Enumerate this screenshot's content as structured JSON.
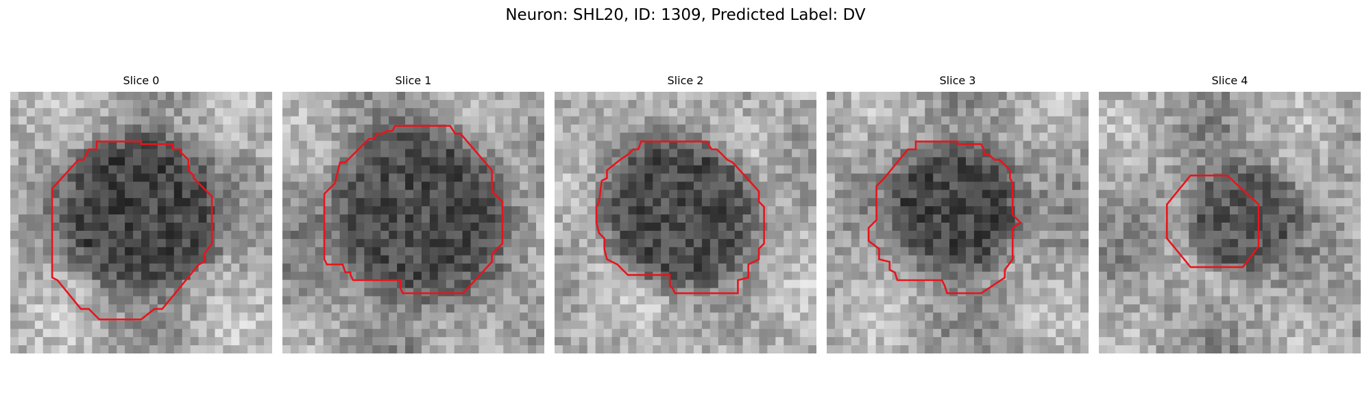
{
  "figure": {
    "title": "Neuron: SHL20, ID: 1309, Predicted Label: DV",
    "contour_color": "#e8141b",
    "image_colormap": "gray"
  },
  "panels": [
    {
      "title": "Slice 0",
      "seed": 11,
      "background_mean": 0.66,
      "dark_center": [
        0.5,
        0.46
      ],
      "dark_radius": 0.31,
      "dark_level": 0.27,
      "contour": [
        [
          0.33,
          0.19
        ],
        [
          0.5,
          0.19
        ],
        [
          0.5,
          0.2
        ],
        [
          0.62,
          0.2
        ],
        [
          0.62,
          0.22
        ],
        [
          0.65,
          0.22
        ],
        [
          0.65,
          0.23
        ],
        [
          0.68,
          0.26
        ],
        [
          0.68,
          0.3
        ],
        [
          0.7,
          0.32
        ],
        [
          0.7,
          0.33
        ],
        [
          0.77,
          0.4
        ],
        [
          0.77,
          0.58
        ],
        [
          0.74,
          0.62
        ],
        [
          0.74,
          0.65
        ],
        [
          0.72,
          0.66
        ],
        [
          0.58,
          0.83
        ],
        [
          0.55,
          0.83
        ],
        [
          0.5,
          0.87
        ],
        [
          0.34,
          0.87
        ],
        [
          0.3,
          0.83
        ],
        [
          0.27,
          0.83
        ],
        [
          0.18,
          0.72
        ],
        [
          0.16,
          0.71
        ],
        [
          0.16,
          0.37
        ],
        [
          0.26,
          0.26
        ],
        [
          0.28,
          0.26
        ],
        [
          0.3,
          0.22
        ],
        [
          0.33,
          0.22
        ]
      ]
    },
    {
      "title": "Slice 1",
      "seed": 23,
      "background_mean": 0.62,
      "dark_center": [
        0.52,
        0.47
      ],
      "dark_radius": 0.34,
      "dark_level": 0.3,
      "contour": [
        [
          0.43,
          0.13
        ],
        [
          0.64,
          0.13
        ],
        [
          0.66,
          0.16
        ],
        [
          0.68,
          0.16
        ],
        [
          0.8,
          0.3
        ],
        [
          0.8,
          0.38
        ],
        [
          0.84,
          0.42
        ],
        [
          0.84,
          0.58
        ],
        [
          0.8,
          0.62
        ],
        [
          0.8,
          0.65
        ],
        [
          0.69,
          0.77
        ],
        [
          0.46,
          0.77
        ],
        [
          0.45,
          0.75
        ],
        [
          0.45,
          0.72
        ],
        [
          0.27,
          0.72
        ],
        [
          0.26,
          0.7
        ],
        [
          0.26,
          0.69
        ],
        [
          0.24,
          0.69
        ],
        [
          0.23,
          0.66
        ],
        [
          0.17,
          0.66
        ],
        [
          0.16,
          0.64
        ],
        [
          0.16,
          0.39
        ],
        [
          0.2,
          0.35
        ],
        [
          0.22,
          0.27
        ],
        [
          0.24,
          0.27
        ],
        [
          0.33,
          0.18
        ],
        [
          0.35,
          0.18
        ],
        [
          0.36,
          0.16
        ],
        [
          0.38,
          0.16
        ],
        [
          0.4,
          0.15
        ],
        [
          0.42,
          0.15
        ]
      ]
    },
    {
      "title": "Slice 2",
      "seed": 37,
      "background_mean": 0.68,
      "dark_center": [
        0.48,
        0.46
      ],
      "dark_radius": 0.3,
      "dark_level": 0.3,
      "contour": [
        [
          0.33,
          0.19
        ],
        [
          0.58,
          0.19
        ],
        [
          0.6,
          0.22
        ],
        [
          0.62,
          0.22
        ],
        [
          0.64,
          0.24
        ],
        [
          0.66,
          0.26
        ],
        [
          0.68,
          0.27
        ],
        [
          0.78,
          0.38
        ],
        [
          0.78,
          0.42
        ],
        [
          0.8,
          0.44
        ],
        [
          0.8,
          0.58
        ],
        [
          0.78,
          0.6
        ],
        [
          0.78,
          0.64
        ],
        [
          0.74,
          0.66
        ],
        [
          0.74,
          0.71
        ],
        [
          0.7,
          0.72
        ],
        [
          0.7,
          0.77
        ],
        [
          0.46,
          0.77
        ],
        [
          0.45,
          0.75
        ],
        [
          0.44,
          0.74
        ],
        [
          0.44,
          0.7
        ],
        [
          0.28,
          0.7
        ],
        [
          0.26,
          0.68
        ],
        [
          0.24,
          0.66
        ],
        [
          0.2,
          0.64
        ],
        [
          0.19,
          0.6
        ],
        [
          0.19,
          0.56
        ],
        [
          0.17,
          0.54
        ],
        [
          0.16,
          0.5
        ],
        [
          0.16,
          0.44
        ],
        [
          0.17,
          0.42
        ],
        [
          0.18,
          0.34
        ],
        [
          0.2,
          0.33
        ],
        [
          0.2,
          0.3
        ],
        [
          0.25,
          0.26
        ],
        [
          0.28,
          0.24
        ],
        [
          0.3,
          0.22
        ],
        [
          0.32,
          0.22
        ]
      ]
    },
    {
      "title": "Slice 3",
      "seed": 53,
      "background_mean": 0.65,
      "dark_center": [
        0.49,
        0.44
      ],
      "dark_radius": 0.26,
      "dark_level": 0.28,
      "contour": [
        [
          0.34,
          0.19
        ],
        [
          0.5,
          0.19
        ],
        [
          0.5,
          0.2
        ],
        [
          0.59,
          0.2
        ],
        [
          0.6,
          0.22
        ],
        [
          0.6,
          0.24
        ],
        [
          0.62,
          0.24
        ],
        [
          0.64,
          0.26
        ],
        [
          0.66,
          0.26
        ],
        [
          0.7,
          0.3
        ],
        [
          0.7,
          0.33
        ],
        [
          0.71,
          0.35
        ],
        [
          0.71,
          0.47
        ],
        [
          0.74,
          0.5
        ],
        [
          0.71,
          0.52
        ],
        [
          0.71,
          0.64
        ],
        [
          0.68,
          0.68
        ],
        [
          0.68,
          0.71
        ],
        [
          0.59,
          0.77
        ],
        [
          0.46,
          0.77
        ],
        [
          0.45,
          0.74
        ],
        [
          0.44,
          0.72
        ],
        [
          0.27,
          0.72
        ],
        [
          0.26,
          0.69
        ],
        [
          0.24,
          0.68
        ],
        [
          0.24,
          0.65
        ],
        [
          0.2,
          0.64
        ],
        [
          0.2,
          0.6
        ],
        [
          0.16,
          0.57
        ],
        [
          0.16,
          0.52
        ],
        [
          0.19,
          0.49
        ],
        [
          0.19,
          0.36
        ],
        [
          0.22,
          0.33
        ],
        [
          0.31,
          0.22
        ],
        [
          0.34,
          0.22
        ]
      ]
    },
    {
      "title": "Slice 4",
      "seed": 71,
      "background_mean": 0.64,
      "dark_center": [
        0.55,
        0.48
      ],
      "dark_radius": 0.22,
      "dark_level": 0.35,
      "contour": [
        [
          0.35,
          0.32
        ],
        [
          0.49,
          0.32
        ],
        [
          0.61,
          0.43
        ],
        [
          0.61,
          0.59
        ],
        [
          0.55,
          0.67
        ],
        [
          0.35,
          0.67
        ],
        [
          0.26,
          0.56
        ],
        [
          0.26,
          0.43
        ]
      ]
    }
  ]
}
